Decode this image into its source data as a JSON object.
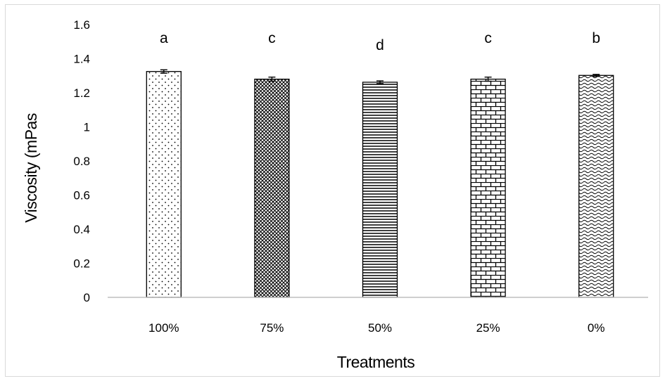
{
  "chart_data": {
    "type": "bar",
    "title": "",
    "xlabel": "Treatments",
    "ylabel": "Viscosity (mPas",
    "ylim": [
      0,
      1.6
    ],
    "yticks": [
      "0",
      "0.2",
      "0.4",
      "0.6",
      "0.8",
      "1",
      "1.2",
      "1.4",
      "1.6"
    ],
    "categories": [
      "100%",
      "75%",
      "50%",
      "25%",
      "0%"
    ],
    "values": [
      1.325,
      1.28,
      1.262,
      1.28,
      1.302
    ],
    "errors": [
      0.01,
      0.012,
      0.008,
      0.012,
      0.006
    ],
    "significance_letters": [
      "a",
      "c",
      "d",
      "c",
      "b"
    ],
    "bar_patterns": [
      "dots",
      "crosshatch",
      "horizontal-lines",
      "brick",
      "wave"
    ],
    "bar_fill_color": "#ffffff",
    "bar_pattern_color": "#000000",
    "axis_line_color": "#bfbfbf",
    "grid": false,
    "legend": "none"
  }
}
